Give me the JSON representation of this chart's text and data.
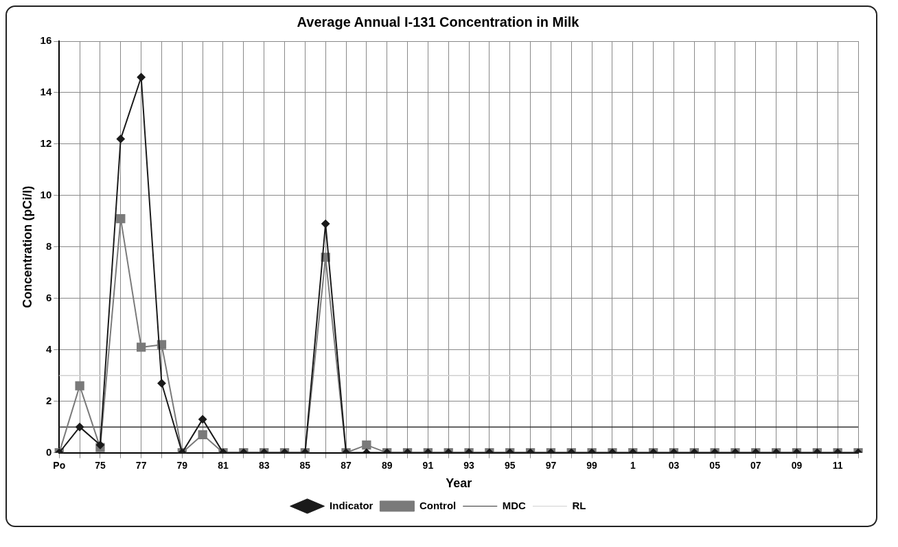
{
  "chart_data": {
    "type": "line",
    "title": "Average Annual I-131 Concentration in Milk",
    "xlabel": "Year",
    "ylabel": "Concentration (pCi/l)",
    "categories": [
      "Po",
      null,
      "75",
      null,
      "77",
      null,
      "79",
      null,
      "81",
      null,
      "83",
      null,
      "85",
      null,
      "87",
      null,
      "89",
      null,
      "91",
      null,
      "93",
      null,
      "95",
      null,
      "97",
      null,
      "99",
      null,
      "1",
      null,
      "03",
      null,
      "05",
      null,
      "07",
      null,
      "09",
      null,
      "11",
      null
    ],
    "series": [
      {
        "name": "Indicator",
        "color": "#1a1a1a",
        "marker": "diamond",
        "values": [
          0,
          1.0,
          0.3,
          12.2,
          14.6,
          2.7,
          0,
          1.3,
          0,
          0,
          0,
          0,
          0,
          8.9,
          0,
          0,
          0,
          0,
          0,
          0,
          0,
          0,
          0,
          0,
          0,
          0,
          0,
          0,
          0,
          0,
          0,
          0,
          0,
          0,
          0,
          0,
          0,
          0,
          0,
          0
        ]
      },
      {
        "name": "Control",
        "color": "#7a7a7a",
        "marker": "square",
        "values": [
          0,
          2.6,
          0.2,
          9.1,
          4.1,
          4.2,
          0,
          0.7,
          0,
          0,
          0,
          0,
          0,
          7.6,
          0,
          0.3,
          0,
          0,
          0,
          0,
          0,
          0,
          0,
          0,
          0,
          0,
          0,
          0,
          0,
          0,
          0,
          0,
          0,
          0,
          0,
          0,
          0,
          0,
          0,
          0
        ]
      },
      {
        "name": "MDC",
        "color": "#333333",
        "marker": "none",
        "values": [
          1,
          1,
          1,
          1,
          1,
          1,
          1,
          1,
          1,
          1,
          1,
          1,
          1,
          1,
          1,
          1,
          1,
          1,
          1,
          1,
          1,
          1,
          1,
          1,
          1,
          1,
          1,
          1,
          1,
          1,
          1,
          1,
          1,
          1,
          1,
          1,
          1,
          1,
          1,
          1
        ]
      },
      {
        "name": "RL",
        "color": "#d0d0d0",
        "marker": "none",
        "values": [
          3,
          3,
          3,
          3,
          3,
          3,
          3,
          3,
          3,
          3,
          3,
          3,
          3,
          3,
          3,
          3,
          3,
          3,
          3,
          3,
          3,
          3,
          3,
          3,
          3,
          3,
          3,
          3,
          3,
          3,
          3,
          3,
          3,
          3,
          3,
          3,
          3,
          3,
          3,
          3
        ]
      }
    ],
    "ylim": [
      0,
      16
    ],
    "yticks": [
      0,
      2,
      4,
      6,
      8,
      10,
      12,
      14,
      16
    ],
    "grid": true,
    "legend": "bottom"
  }
}
